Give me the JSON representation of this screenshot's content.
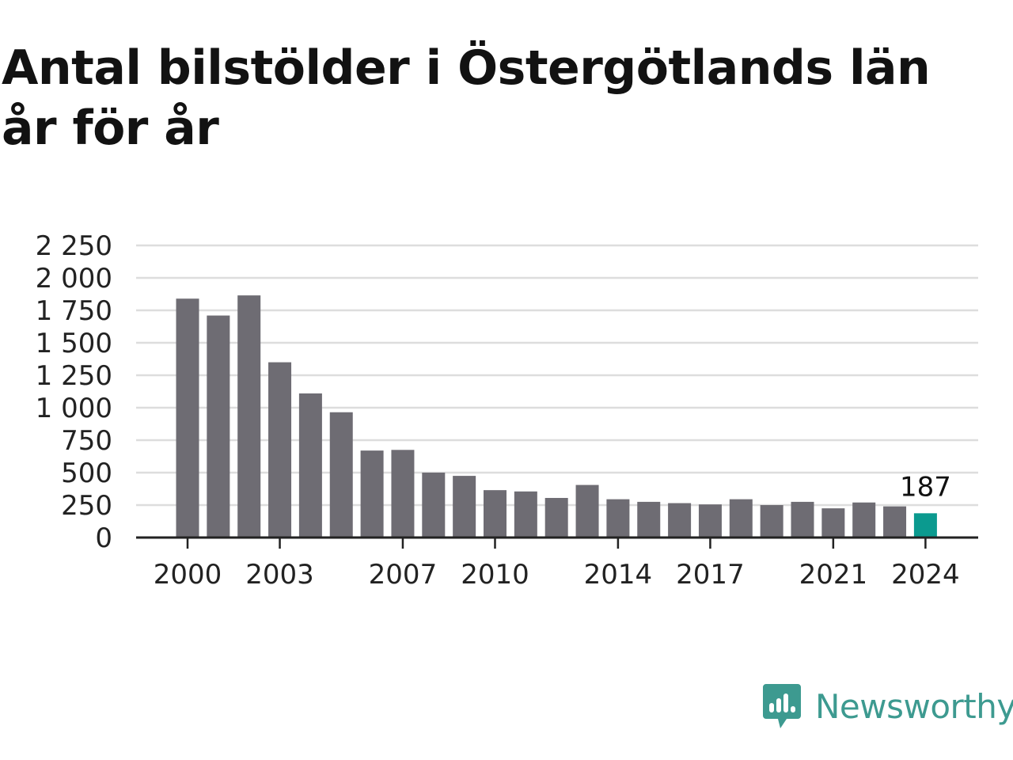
{
  "title": "Antal bilstölder i Östergötlands län år för år",
  "brand": {
    "name": "Newsworthy",
    "icon": "newsworthy-logo-icon",
    "color": "#3d9a90"
  },
  "colors": {
    "bar": "#6e6c73",
    "highlight": "#0b9a8f",
    "grid": "#dddddd",
    "axis": "#222222",
    "text": "#222222"
  },
  "chart_data": {
    "type": "bar",
    "title": "Antal bilstölder i Östergötlands län år för år",
    "xlabel": "",
    "ylabel": "",
    "categories": [
      "2000",
      "2001",
      "2002",
      "2003",
      "2004",
      "2005",
      "2006",
      "2007",
      "2008",
      "2009",
      "2010",
      "2011",
      "2012",
      "2013",
      "2014",
      "2015",
      "2016",
      "2017",
      "2018",
      "2019",
      "2020",
      "2021",
      "2022",
      "2023",
      "2024"
    ],
    "values": [
      1840,
      1710,
      1865,
      1350,
      1110,
      965,
      670,
      675,
      500,
      475,
      365,
      355,
      305,
      405,
      295,
      275,
      265,
      255,
      295,
      250,
      275,
      225,
      270,
      240,
      187
    ],
    "highlight_index": 24,
    "highlight_label": "187",
    "ylim": [
      0,
      2250
    ],
    "yticks": [
      0,
      250,
      500,
      750,
      1000,
      1250,
      1500,
      1750,
      2000,
      2250
    ],
    "ytick_labels": [
      "0",
      "250",
      "500",
      "750",
      "1 000",
      "1 250",
      "1 500",
      "1 750",
      "2 000",
      "2 250"
    ],
    "xtick_labels": [
      "2000",
      "2003",
      "2007",
      "2010",
      "2014",
      "2017",
      "2021",
      "2024"
    ],
    "grid": true,
    "legend": "none"
  }
}
